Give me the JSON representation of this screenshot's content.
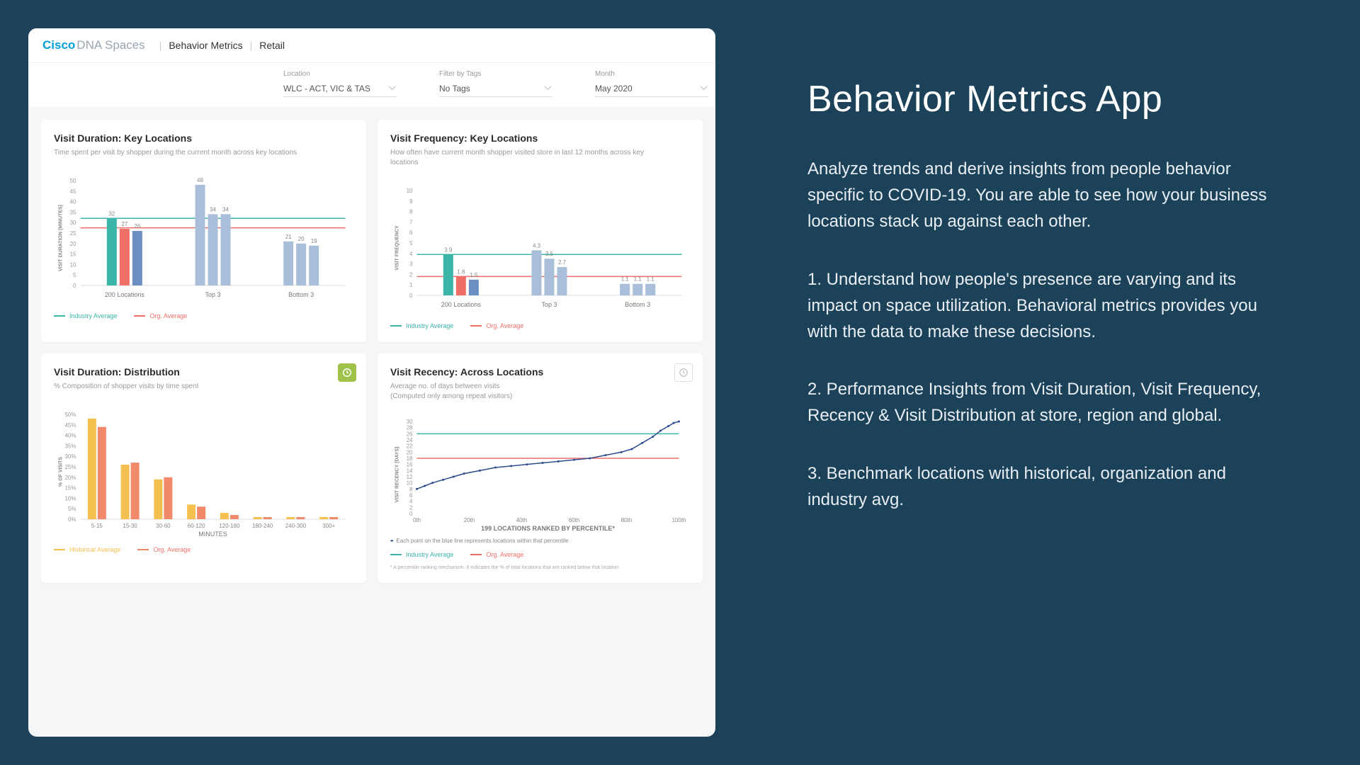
{
  "colors": {
    "page_bg": "#1c425a",
    "card_bg": "#ffffff",
    "teal": "#3bb5a8",
    "red": "#ef6e68",
    "blue": "#6b8fc2",
    "lightblue": "#a9bfd9",
    "yellow": "#f4c04f",
    "orange": "#f08a6a",
    "grid": "#eeeeee",
    "darkblue_line": "#2e4b8f"
  },
  "header": {
    "logo_cisco": "Cisco",
    "logo_dna": "DNA Spaces",
    "crumb1": "Behavior Metrics",
    "crumb2": "Retail"
  },
  "filters": {
    "location": {
      "label": "Location",
      "value": "WLC - ACT, VIC & TAS"
    },
    "tags": {
      "label": "Filter by Tags",
      "value": "No Tags"
    },
    "month": {
      "label": "Month",
      "value": "May 2020"
    }
  },
  "legend": {
    "industry": "Industry Average",
    "org": "Org. Average",
    "hist": "Historical Average"
  },
  "chart1": {
    "title": "Visit Duration: Key Locations",
    "subtitle": "Time spent per visit by shopper during the current month across key locations",
    "y_axis_title": "VISIT DURATION (MINUTES)",
    "ylim": [
      0,
      50
    ],
    "ytick_step": 5,
    "industry_avg": 32,
    "org_avg": 27.5,
    "groups": [
      {
        "name": "200 Locations",
        "bars": [
          {
            "v": 32,
            "c": "teal"
          },
          {
            "v": 27,
            "c": "red"
          },
          {
            "v": 26,
            "c": "blue"
          }
        ]
      },
      {
        "name": "Top 3",
        "bars": [
          {
            "v": 48,
            "c": "lightblue"
          },
          {
            "v": 34,
            "c": "lightblue"
          },
          {
            "v": 34,
            "c": "lightblue"
          }
        ]
      },
      {
        "name": "Bottom 3",
        "bars": [
          {
            "v": 21,
            "c": "lightblue"
          },
          {
            "v": 20,
            "c": "lightblue"
          },
          {
            "v": 19,
            "c": "lightblue"
          }
        ]
      }
    ]
  },
  "chart2": {
    "title": "Visit Frequency: Key Locations",
    "subtitle": "How often have current month shopper visited store in last 12 months across key locations",
    "y_axis_title": "VISIT FREQUENCY",
    "ylim": [
      0,
      10
    ],
    "ytick_step": 1,
    "industry_avg": 3.9,
    "org_avg": 1.8,
    "groups": [
      {
        "name": "200 Locations",
        "bars": [
          {
            "v": 3.9,
            "c": "teal"
          },
          {
            "v": 1.8,
            "c": "red"
          },
          {
            "v": 1.5,
            "c": "blue"
          }
        ]
      },
      {
        "name": "Top 3",
        "bars": [
          {
            "v": 4.3,
            "c": "lightblue"
          },
          {
            "v": 3.5,
            "c": "lightblue"
          },
          {
            "v": 2.7,
            "c": "lightblue"
          }
        ]
      },
      {
        "name": "Bottom 3",
        "bars": [
          {
            "v": 1.1,
            "c": "lightblue"
          },
          {
            "v": 1.1,
            "c": "lightblue"
          },
          {
            "v": 1.1,
            "c": "lightblue"
          }
        ]
      }
    ]
  },
  "chart3": {
    "title": "Visit Duration: Distribution",
    "subtitle": "% Composition of shopper visits by time spent",
    "y_axis_title": "% OF VISITS",
    "x_axis_title": "MINUTES",
    "ylim": [
      0,
      50
    ],
    "ytick_step": 5,
    "categories": [
      "5-15",
      "15-30",
      "30-60",
      "60-120",
      "120-180",
      "180-240",
      "240-300",
      "300+"
    ],
    "series": [
      {
        "name": "hist",
        "color": "yellow",
        "values": [
          48,
          26,
          19,
          7,
          3,
          1,
          1,
          1
        ]
      },
      {
        "name": "org",
        "color": "orange",
        "values": [
          44,
          27,
          20,
          6,
          2,
          1,
          1,
          1
        ]
      }
    ]
  },
  "chart4": {
    "title": "Visit Recency: Across Locations",
    "subtitle": "Average no. of days between visits",
    "subtitle2": "(Computed only among repeat visitors)",
    "y_axis_title": "VISIT RECENCY (DAYS)",
    "x_axis_title": "199 LOCATIONS RANKED BY PERCENTILE*",
    "ylim": [
      0,
      30
    ],
    "ytick_step": 2,
    "xlim": [
      0,
      100
    ],
    "xtick_step": 20,
    "x_suffix": "th",
    "industry_avg": 26,
    "org_avg": 18,
    "line_note": "Each point on the blue line represents locations within that percentile",
    "footnote": "* A percentile ranking mechanism. It indicates the % of total locations that are ranked below that location",
    "line_points": [
      [
        0,
        8
      ],
      [
        3,
        9
      ],
      [
        6,
        10
      ],
      [
        10,
        11
      ],
      [
        14,
        12
      ],
      [
        18,
        13
      ],
      [
        24,
        14
      ],
      [
        30,
        15
      ],
      [
        36,
        15.5
      ],
      [
        42,
        16
      ],
      [
        48,
        16.5
      ],
      [
        54,
        17
      ],
      [
        60,
        17.5
      ],
      [
        66,
        18
      ],
      [
        72,
        19
      ],
      [
        78,
        20
      ],
      [
        82,
        21
      ],
      [
        86,
        23
      ],
      [
        90,
        25
      ],
      [
        93,
        27
      ],
      [
        96,
        28.5
      ],
      [
        98,
        29.5
      ],
      [
        100,
        30
      ]
    ]
  },
  "right": {
    "title": "Behavior Metrics App",
    "p1": "Analyze trends and derive insights from people behavior specific to COVID-19. You are able to see how your business locations stack up against each other.",
    "p2": "1. Understand how people's presence are varying and its impact on space utilization. Behavioral metrics provides you with the data to make these decisions.",
    "p3": "2. Performance Insights from Visit Duration, Visit Frequency, Recency & Visit Distribution at store, region and global.",
    "p4": "3. Benchmark locations with historical, organization and industry avg."
  }
}
